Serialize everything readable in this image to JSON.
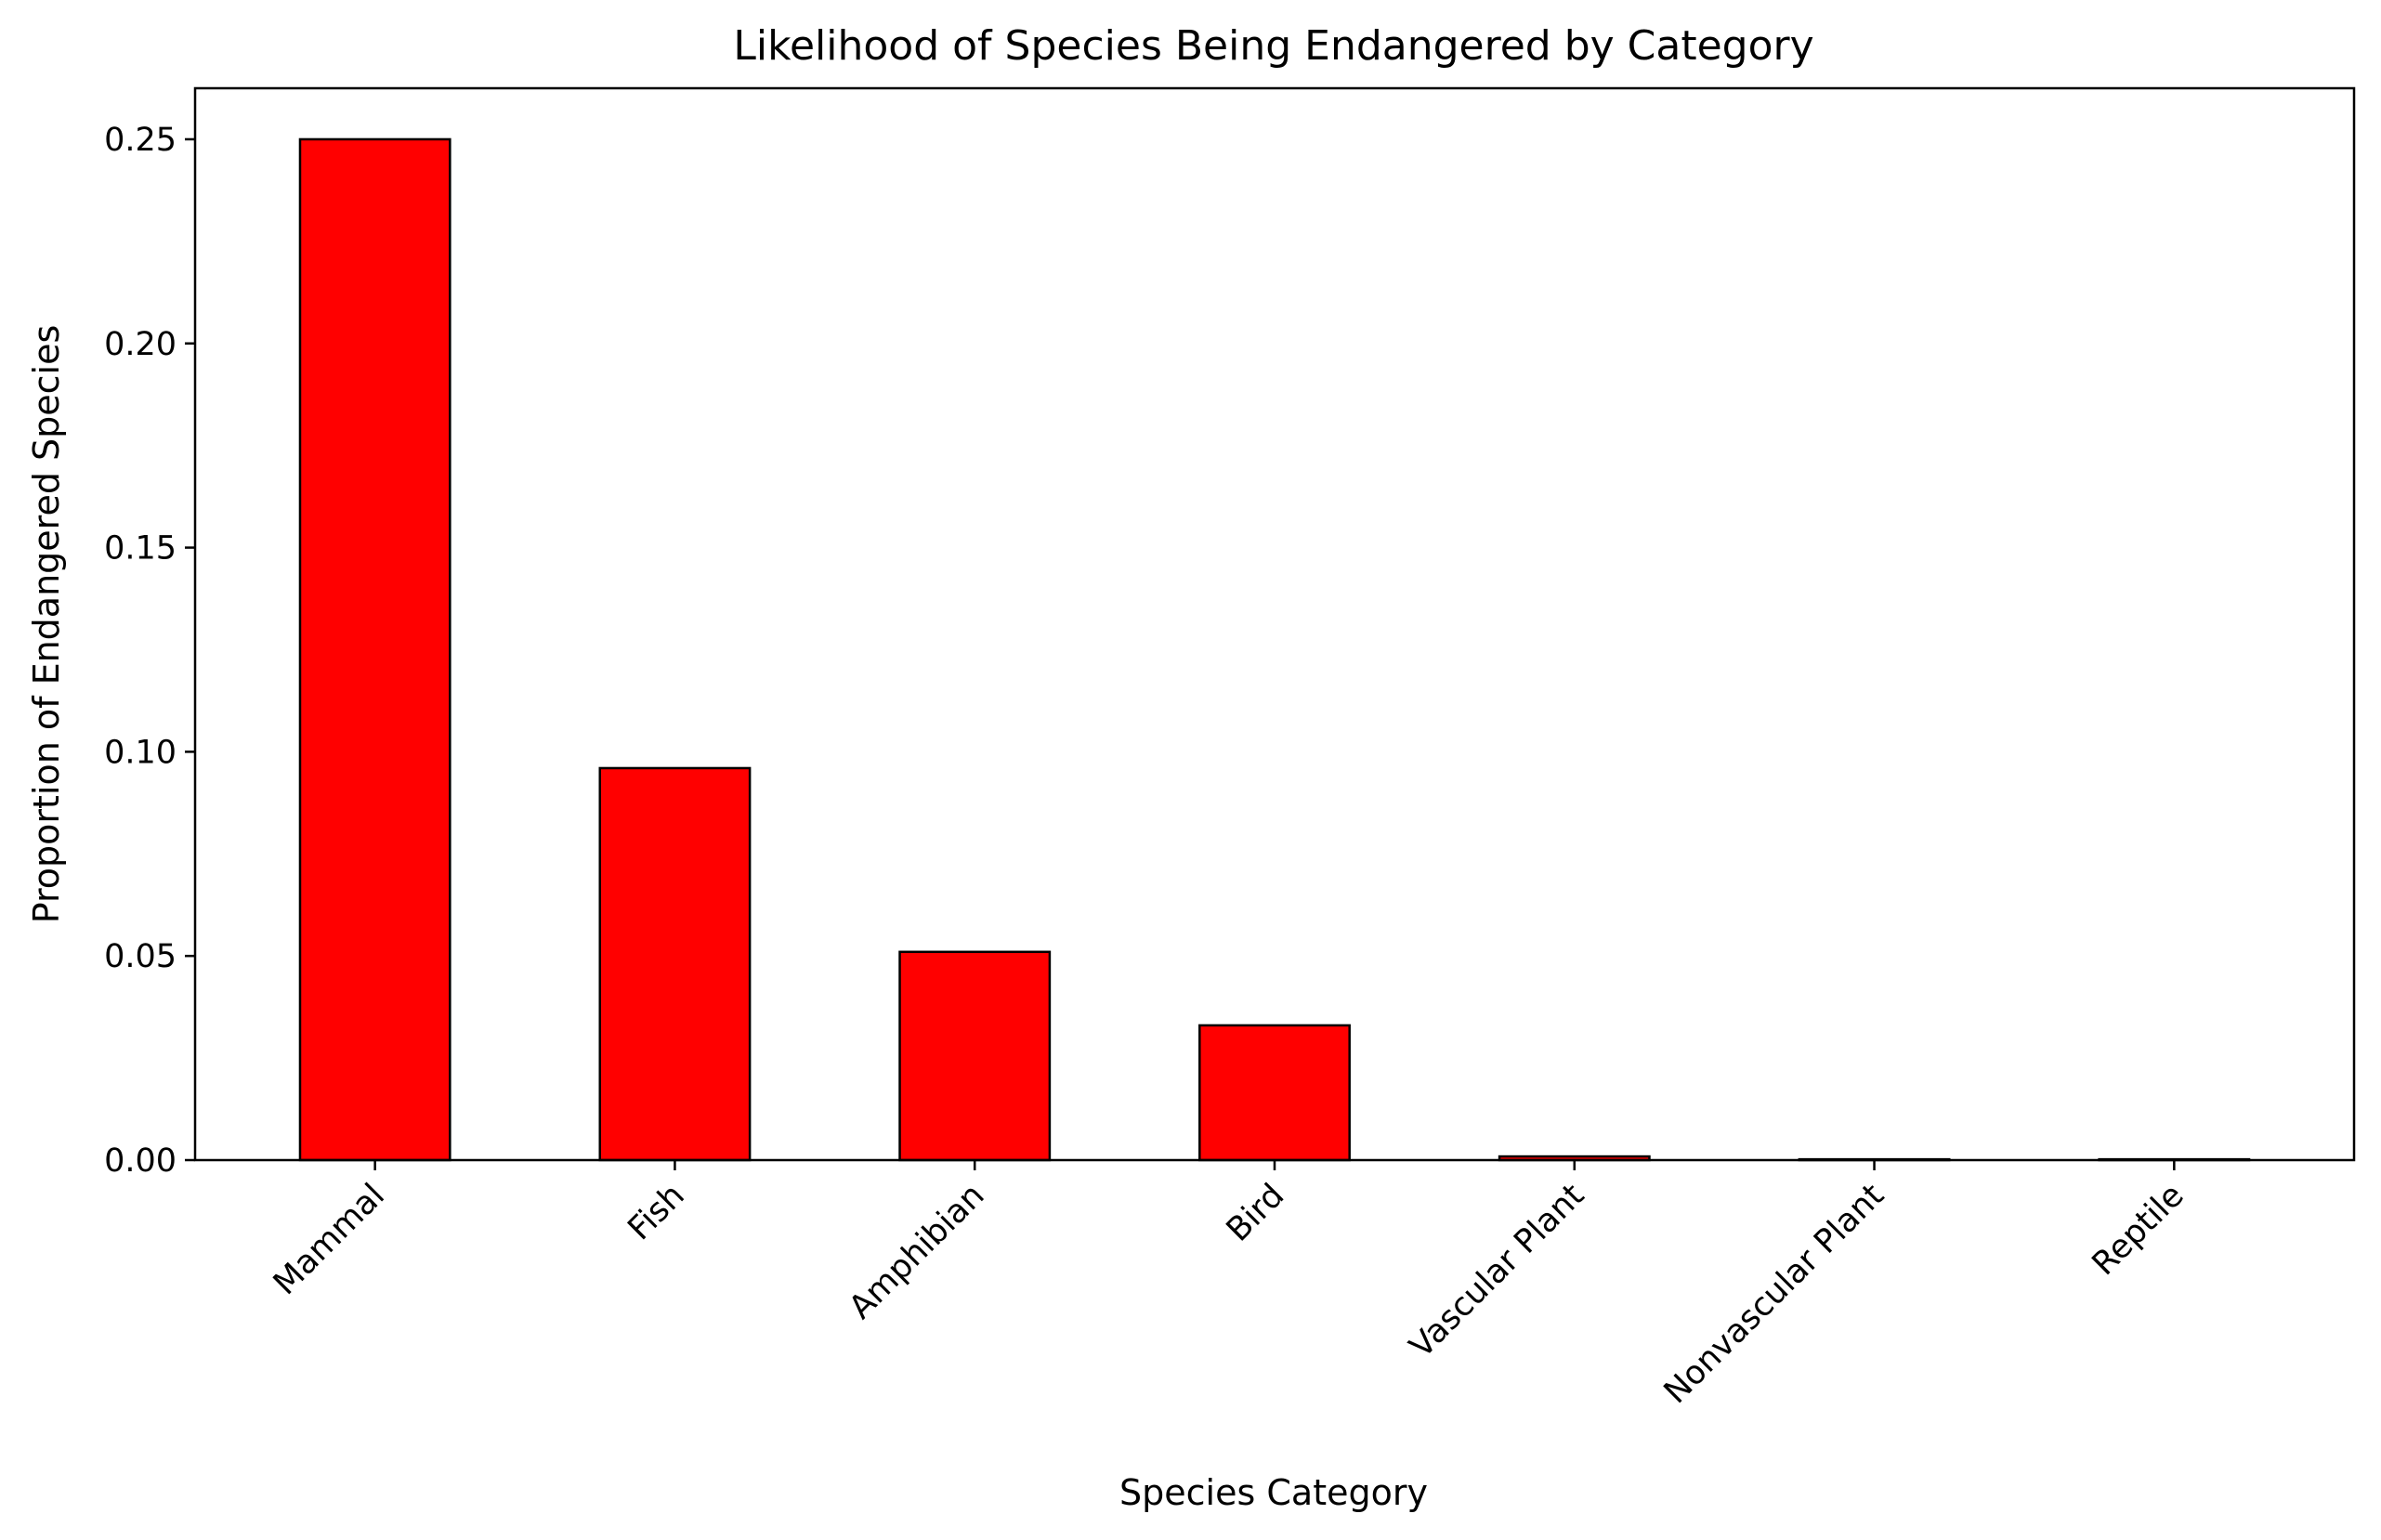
{
  "chart_data": {
    "type": "bar",
    "title": "Likelihood of Species Being Endangered by Category",
    "xlabel": "Species Category",
    "ylabel": "Proportion of Endangered Species",
    "categories": [
      "Mammal",
      "Fish",
      "Amphibian",
      "Bird",
      "Vascular Plant",
      "Nonvascular Plant",
      "Reptile"
    ],
    "values": [
      0.25,
      0.096,
      0.051,
      0.033,
      0.0009,
      0.0002,
      0.0002
    ],
    "ylim": [
      0,
      0.2625
    ],
    "yticks": [
      0.0,
      0.05,
      0.1,
      0.15,
      0.2,
      0.25
    ],
    "ytick_labels": [
      "0.00",
      "0.05",
      "0.10",
      "0.15",
      "0.20",
      "0.25"
    ],
    "grid": false,
    "legend": "none",
    "colors": {
      "bar_fill": "#ff0000",
      "bar_edge": "#000000"
    }
  }
}
